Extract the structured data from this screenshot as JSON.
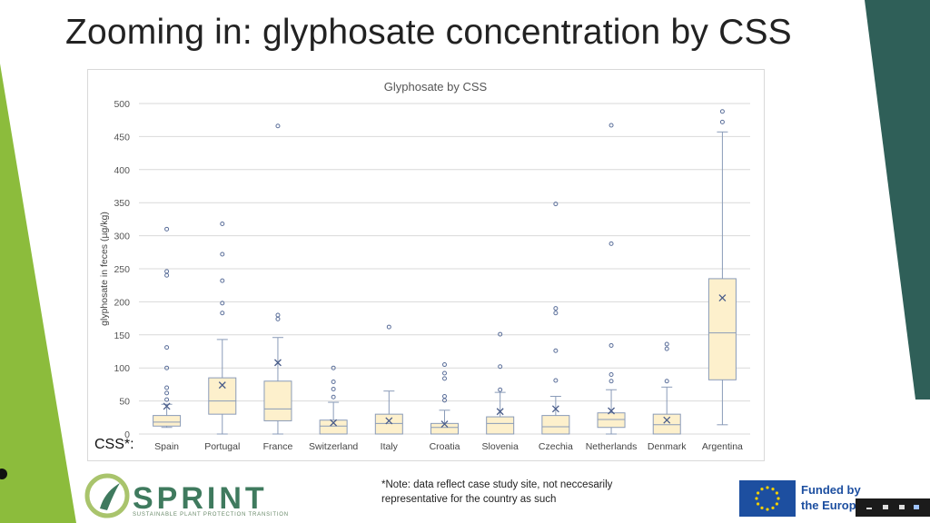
{
  "slide": {
    "title": "Zooming in: glyphosate concentration by CSS",
    "css_label": "CSS*:",
    "note": "*Note: data reflect case study site, not neccesarily representative for the country as such",
    "funded_line1": "Funded by",
    "funded_line2": "the Europ",
    "logo_text": "SPRINT",
    "logo_subtitle": "SUSTAINABLE PLANT PROTECTION TRANSITION"
  },
  "colors": {
    "box_fill": "#fdf0cc",
    "box_stroke": "#8a9bb8",
    "whisker": "#8a9bb8",
    "mean_marker": "#4a5d8a",
    "outlier": "#5b6f9a",
    "grid": "#d9d9d9",
    "left_green": "#8cbc3c",
    "right_teal": "#2f5f58",
    "eu_blue": "#1d4fa0",
    "eu_star": "#f5d000"
  },
  "icons": {
    "logo": "sprint-logo-icon",
    "eu_flag": "eu-flag-icon"
  },
  "chart_data": {
    "type": "boxplot",
    "title": "Glyphosate by CSS",
    "ylabel": "glyphosate in feces (µg/kg)",
    "xlabel": "",
    "ylim": [
      0,
      500
    ],
    "yticks": [
      0,
      50,
      100,
      150,
      200,
      250,
      300,
      350,
      400,
      450,
      500
    ],
    "grid": true,
    "categories": [
      "Spain",
      "Portugal",
      "France",
      "Switzerland",
      "Italy",
      "Croatia",
      "Slovenia",
      "Czechia",
      "Netherlands",
      "Denmark",
      "Argentina"
    ],
    "series": [
      {
        "category": "Spain",
        "min": 10,
        "q1": 12,
        "median": 18,
        "q3": 28,
        "max": 45,
        "mean": 42,
        "outliers": [
          52,
          62,
          70,
          100,
          131,
          240,
          246,
          310
        ]
      },
      {
        "category": "Portugal",
        "min": 0,
        "q1": 30,
        "median": 50,
        "q3": 85,
        "max": 143,
        "mean": 74,
        "outliers": [
          183,
          198,
          232,
          272,
          318
        ]
      },
      {
        "category": "France",
        "min": 0,
        "q1": 20,
        "median": 38,
        "q3": 80,
        "max": 146,
        "mean": 108,
        "outliers": [
          174,
          180,
          466
        ]
      },
      {
        "category": "Switzerland",
        "min": 0,
        "q1": 0,
        "median": 12,
        "q3": 21,
        "max": 48,
        "mean": 17,
        "outliers": [
          56,
          68,
          79,
          100
        ]
      },
      {
        "category": "Italy",
        "min": 0,
        "q1": 0,
        "median": 16,
        "q3": 30,
        "max": 65,
        "mean": 20,
        "outliers": [
          162
        ]
      },
      {
        "category": "Croatia",
        "min": 0,
        "q1": 0,
        "median": 10,
        "q3": 16,
        "max": 36,
        "mean": 15,
        "outliers": [
          51,
          57,
          84,
          92,
          105
        ]
      },
      {
        "category": "Slovenia",
        "min": 0,
        "q1": 0,
        "median": 16,
        "q3": 26,
        "max": 63,
        "mean": 34,
        "outliers": [
          67,
          102,
          151
        ]
      },
      {
        "category": "Czechia",
        "min": 0,
        "q1": 0,
        "median": 11,
        "q3": 28,
        "max": 57,
        "mean": 38,
        "outliers": [
          81,
          126,
          183,
          190,
          348
        ]
      },
      {
        "category": "Netherlands",
        "min": 0,
        "q1": 10,
        "median": 22,
        "q3": 32,
        "max": 67,
        "mean": 35,
        "outliers": [
          80,
          90,
          134,
          288,
          467
        ]
      },
      {
        "category": "Denmark",
        "min": 0,
        "q1": 0,
        "median": 14,
        "q3": 30,
        "max": 71,
        "mean": 21,
        "outliers": [
          80,
          129,
          136
        ]
      },
      {
        "category": "Argentina",
        "min": 14,
        "q1": 82,
        "median": 153,
        "q3": 235,
        "max": 457,
        "mean": 206,
        "outliers": [
          472,
          488
        ]
      }
    ]
  }
}
